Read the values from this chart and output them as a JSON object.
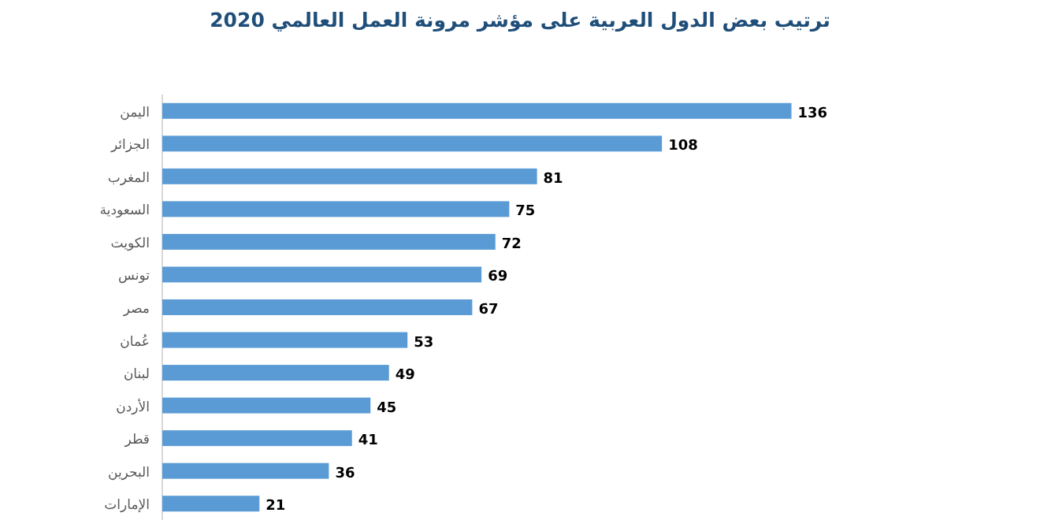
{
  "chart_data": {
    "type": "bar",
    "orientation": "horizontal",
    "title": "ترتيب بعض الدول العربية على مؤشر مرونة العمل العالمي 2020",
    "categories": [
      "اليمن",
      "الجزائر",
      "المغرب",
      "السعودية",
      "الكويت",
      "تونس",
      "مصر",
      "عُمان",
      "لبنان",
      "الأردن",
      "قطر",
      "البحرين",
      "الإمارات"
    ],
    "values": [
      136,
      108,
      81,
      75,
      72,
      69,
      67,
      53,
      49,
      45,
      41,
      36,
      21
    ],
    "color": "#5b9bd5",
    "data_labels": true
  }
}
